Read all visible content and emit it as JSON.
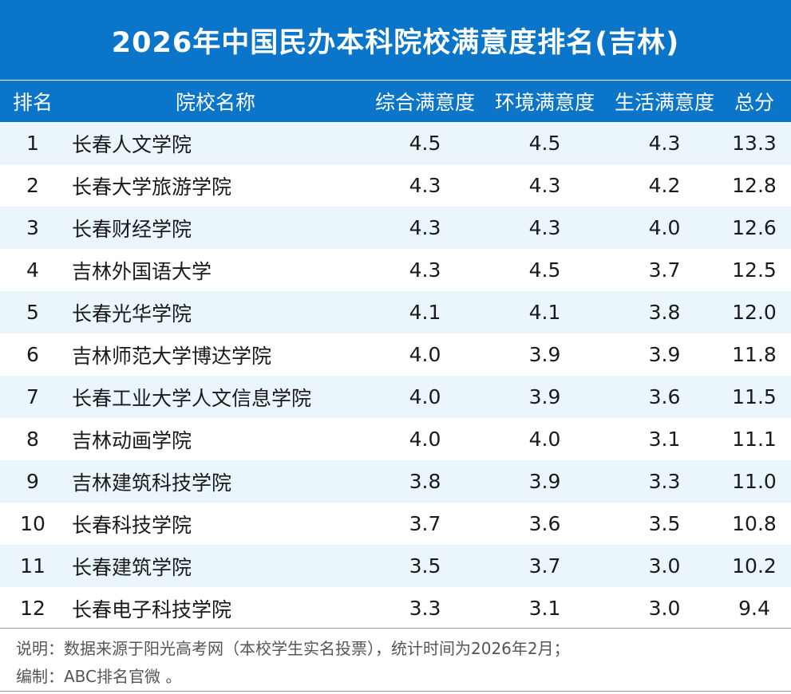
{
  "title": "2026年中国民办本科院校满意度排名(吉林)",
  "header": {
    "rank": "排名",
    "name": "院校名称",
    "overall": "综合满意度",
    "environment": "环境满意度",
    "life": "生活满意度",
    "total": "总分"
  },
  "rows": [
    {
      "rank": "1",
      "name": "长春人文学院",
      "overall": "4.5",
      "environment": "4.5",
      "life": "4.3",
      "total": "13.3"
    },
    {
      "rank": "2",
      "name": "长春大学旅游学院",
      "overall": "4.3",
      "environment": "4.3",
      "life": "4.2",
      "total": "12.8"
    },
    {
      "rank": "3",
      "name": "长春财经学院",
      "overall": "4.3",
      "environment": "4.3",
      "life": "4.0",
      "total": "12.6"
    },
    {
      "rank": "4",
      "name": "吉林外国语大学",
      "overall": "4.3",
      "environment": "4.5",
      "life": "3.7",
      "total": "12.5"
    },
    {
      "rank": "5",
      "name": "长春光华学院",
      "overall": "4.1",
      "environment": "4.1",
      "life": "3.8",
      "total": "12.0"
    },
    {
      "rank": "6",
      "name": "吉林师范大学博达学院",
      "overall": "4.0",
      "environment": "3.9",
      "life": "3.9",
      "total": "11.8"
    },
    {
      "rank": "7",
      "name": "长春工业大学人文信息学院",
      "overall": "4.0",
      "environment": "3.9",
      "life": "3.6",
      "total": "11.5"
    },
    {
      "rank": "8",
      "name": "吉林动画学院",
      "overall": "4.0",
      "environment": "4.0",
      "life": "3.1",
      "total": "11.1"
    },
    {
      "rank": "9",
      "name": "吉林建筑科技学院",
      "overall": "3.8",
      "environment": "3.9",
      "life": "3.3",
      "total": "11.0"
    },
    {
      "rank": "10",
      "name": "长春科技学院",
      "overall": "3.7",
      "environment": "3.6",
      "life": "3.5",
      "total": "10.8"
    },
    {
      "rank": "11",
      "name": "长春建筑学院",
      "overall": "3.5",
      "environment": "3.7",
      "life": "3.0",
      "total": "10.2"
    },
    {
      "rank": "12",
      "name": "长春电子科技学院",
      "overall": "3.3",
      "environment": "3.1",
      "life": "3.0",
      "total": "9.4"
    }
  ],
  "footer": {
    "note": "说明：数据来源于阳光高考网（本校学生实名投票），统计时间为2026年2月；",
    "credit": "编制：ABC排名官微 。"
  },
  "colors": {
    "header_bg": "#0b75c9",
    "header_text": "#ffffff",
    "stripe": "#eaf6fc"
  }
}
